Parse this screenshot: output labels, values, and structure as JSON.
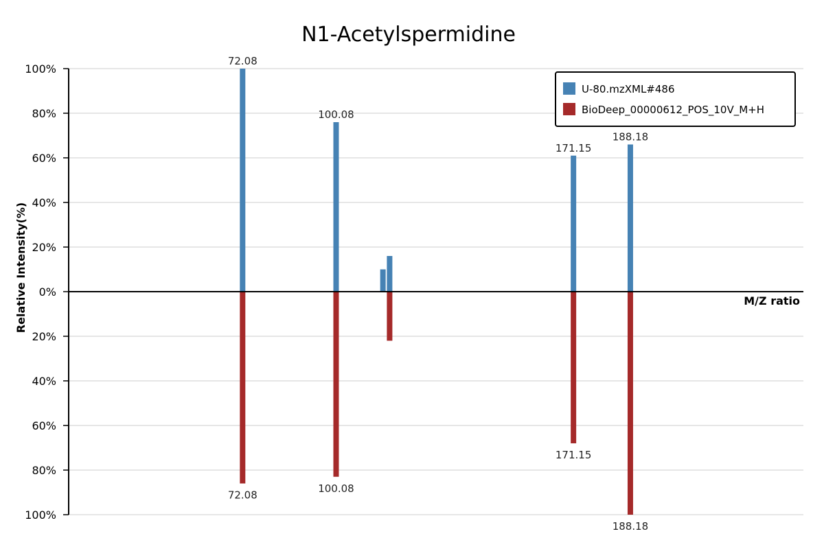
{
  "chart_data": {
    "type": "bar",
    "title": "N1-Acetylspermidine",
    "xlabel": "M/Z ratio",
    "ylabel": "Relative Intensity(%)",
    "ylim": [
      -100,
      100
    ],
    "y_ticks": [
      "100%",
      "80%",
      "60%",
      "40%",
      "20%",
      "0%",
      "20%",
      "40%",
      "60%",
      "80%",
      "100%"
    ],
    "grid": true,
    "legend_position": "top-right",
    "series": [
      {
        "name": "U-80.mzXML#486",
        "color": "#4682B4",
        "points": [
          {
            "mz": 72.08,
            "intensity": 100,
            "label": "72.08"
          },
          {
            "mz": 100.08,
            "intensity": 76,
            "label": "100.08"
          },
          {
            "mz": 114.1,
            "intensity": 10,
            "label": ""
          },
          {
            "mz": 116.1,
            "intensity": 16,
            "label": ""
          },
          {
            "mz": 171.15,
            "intensity": 61,
            "label": "171.15"
          },
          {
            "mz": 188.18,
            "intensity": 66,
            "label": "188.18"
          }
        ]
      },
      {
        "name": "BioDeep_00000612_POS_10V_M+H",
        "color": "#A52A2A",
        "points": [
          {
            "mz": 72.08,
            "intensity": 86,
            "label": "72.08"
          },
          {
            "mz": 100.08,
            "intensity": 83,
            "label": "100.08"
          },
          {
            "mz": 116.1,
            "intensity": 22,
            "label": ""
          },
          {
            "mz": 171.15,
            "intensity": 68,
            "label": "171.15"
          },
          {
            "mz": 188.18,
            "intensity": 100,
            "label": "188.18"
          }
        ]
      }
    ]
  }
}
